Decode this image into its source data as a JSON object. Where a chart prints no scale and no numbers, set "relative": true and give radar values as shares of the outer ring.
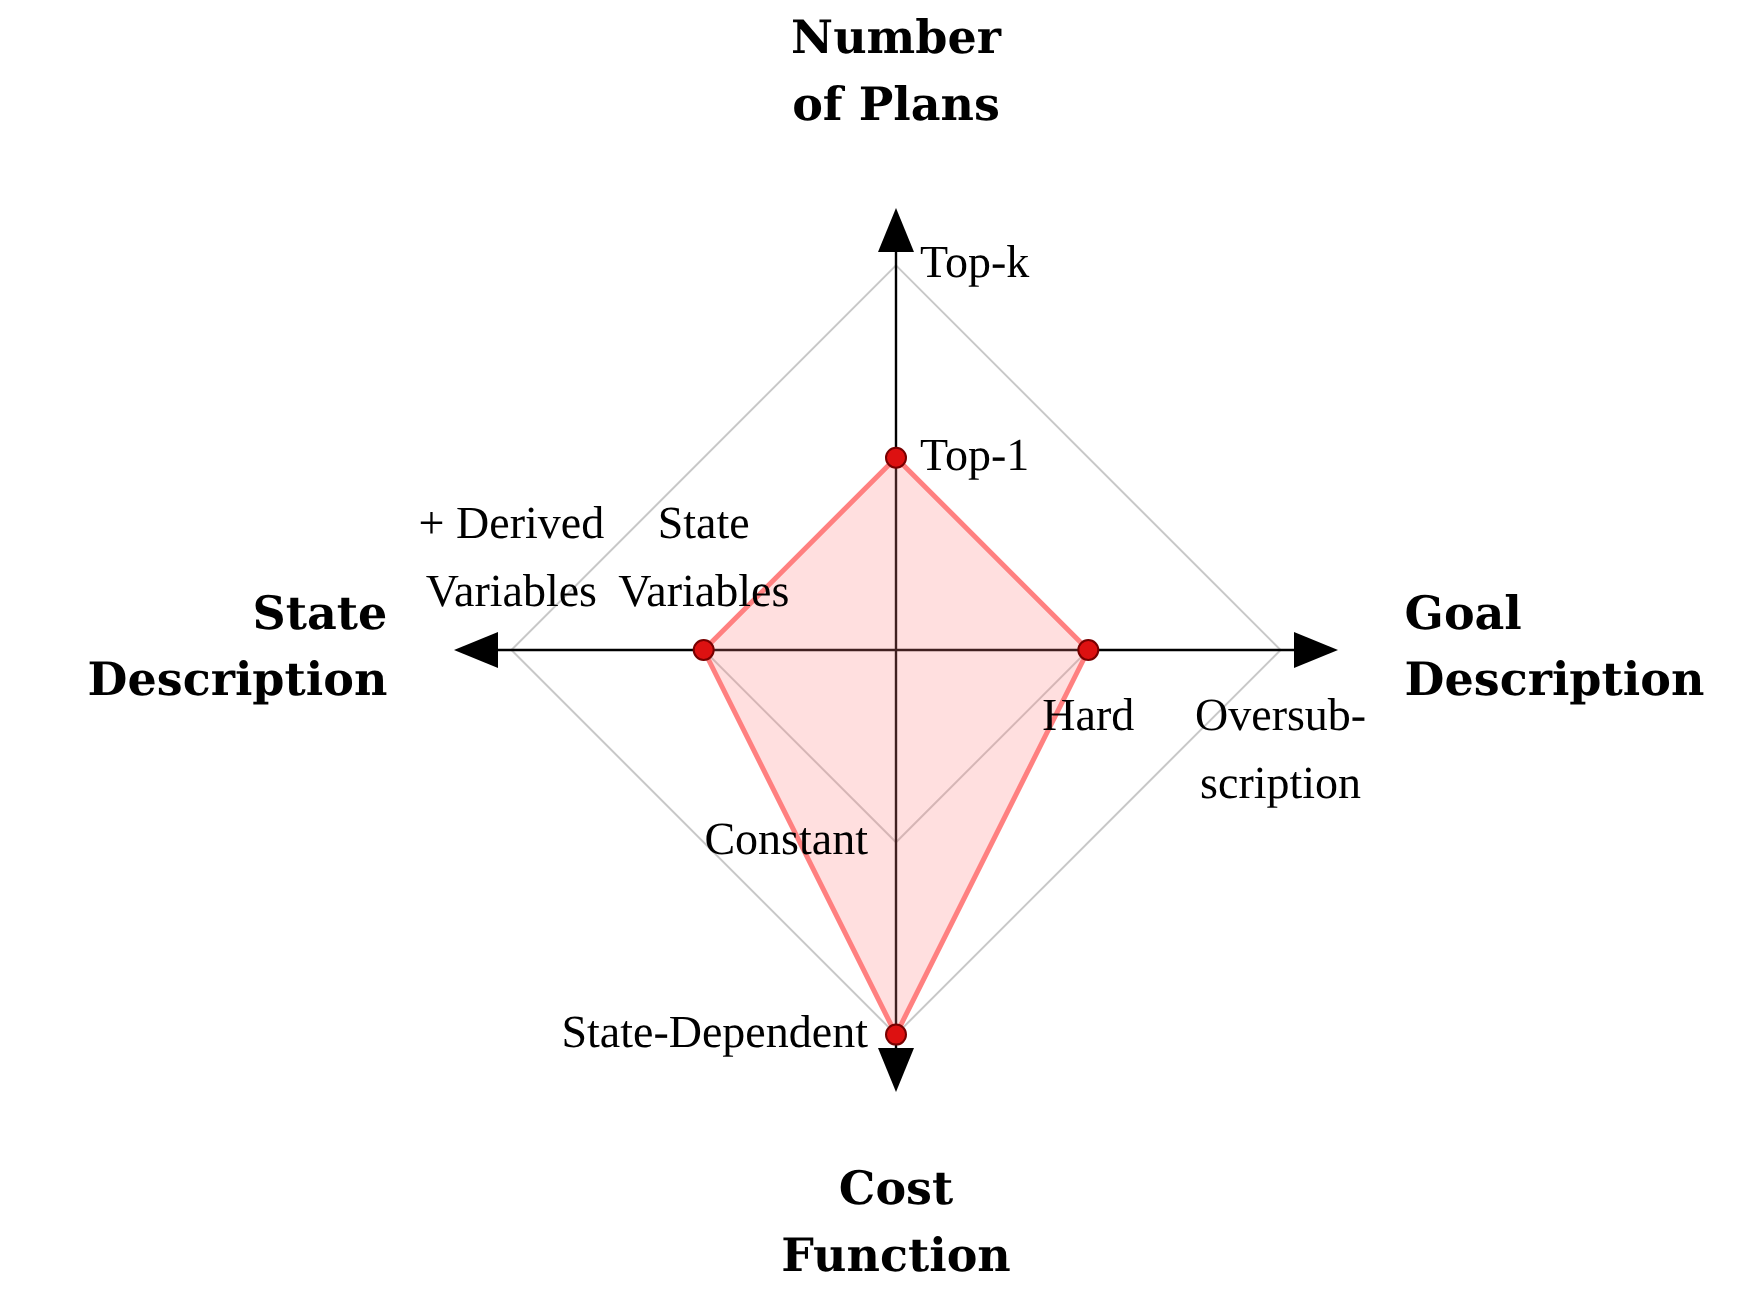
{
  "chart_data": {
    "type": "radar",
    "categories": [
      "Number of Plans",
      "Goal Description",
      "Cost Function",
      "State Description"
    ],
    "relative": true,
    "series": [
      {
        "color": "#ff8080",
        "values": [
          0.5,
          0.5,
          1,
          0.5
        ]
      }
    ],
    "grid": true,
    "marker": "circle",
    "legend": false,
    "annotations": [
      {
        "text": "Top-k",
        "x": "Number of Plans"
      },
      {
        "text": "Top-1",
        "x": "Number of Plans"
      },
      {
        "text": "Oversub-\nscription",
        "x": "Goal Description"
      },
      {
        "text": "Hard",
        "x": "Goal Description"
      },
      {
        "text": "State-Dependent",
        "x": "Cost Function"
      },
      {
        "text": "Constant",
        "x": "Cost Function"
      },
      {
        "text": "+ Derived\nVariables",
        "x": "State Description"
      },
      {
        "text": "State\nVariables",
        "x": "State Description"
      }
    ]
  }
}
